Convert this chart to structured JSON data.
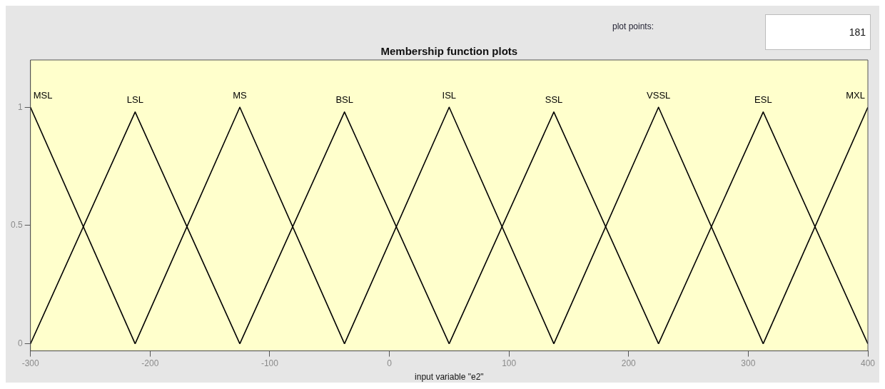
{
  "chart_data": {
    "type": "line",
    "title": "Membership function plots",
    "xlabel": "input variable \"e2\"",
    "xlim": [
      -300,
      400
    ],
    "ylim": [
      -0.03,
      1.2
    ],
    "xticks": [
      -300,
      -200,
      -100,
      0,
      100,
      200,
      300,
      400
    ],
    "yticks": [
      0,
      0.5,
      1
    ],
    "grid": false,
    "legend": false,
    "marker": "none",
    "line_style": "solid",
    "annotations": [
      "plot points:",
      "181"
    ],
    "series": [
      {
        "name": "MSL",
        "color": "#000000",
        "x": [
          -300,
          -212.5
        ],
        "values": [
          1,
          0
        ]
      },
      {
        "name": "LSL",
        "color": "#000000",
        "x": [
          -300,
          -212.5,
          -125
        ],
        "values": [
          0,
          0.98,
          0
        ]
      },
      {
        "name": "MS",
        "color": "#000000",
        "x": [
          -212.5,
          -125,
          -37.5
        ],
        "values": [
          0,
          1,
          0
        ]
      },
      {
        "name": "BSL",
        "color": "#000000",
        "x": [
          -125,
          -37.5,
          50
        ],
        "values": [
          0,
          0.98,
          0
        ]
      },
      {
        "name": "ISL",
        "color": "#000000",
        "x": [
          -37.5,
          50,
          137.5
        ],
        "values": [
          0,
          1,
          0
        ]
      },
      {
        "name": "SSL",
        "color": "#000000",
        "x": [
          50,
          137.5,
          225
        ],
        "values": [
          0,
          0.98,
          0
        ]
      },
      {
        "name": "VSSL",
        "color": "#000000",
        "x": [
          137.5,
          225,
          312.5
        ],
        "values": [
          0,
          1,
          0
        ]
      },
      {
        "name": "ESL",
        "color": "#000000",
        "x": [
          225,
          312.5,
          400
        ],
        "values": [
          0,
          0.98,
          0
        ]
      },
      {
        "name": "MXL",
        "color": "#000000",
        "x": [
          312.5,
          400
        ],
        "values": [
          0,
          1
        ]
      }
    ]
  }
}
